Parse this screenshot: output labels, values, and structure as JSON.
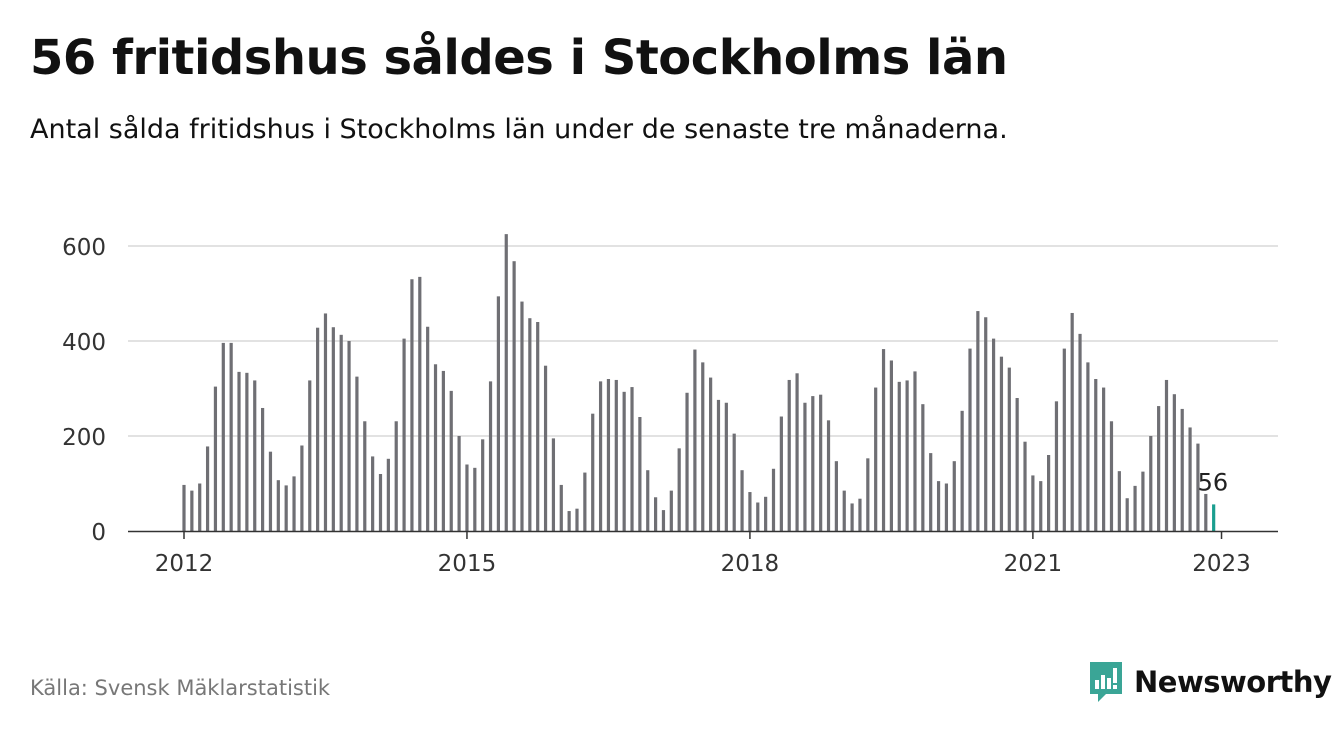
{
  "header": {
    "title": "56 fritidshus såldes i Stockholms län",
    "subtitle": "Antal sålda fritidshus i Stockholms län under de senaste tre månaderna."
  },
  "footer": {
    "source": "Källa: Svensk Mäklarstatistik",
    "brand": "Newsworthy"
  },
  "colors": {
    "bar": "#6f6f74",
    "highlight": "#1a9e8f",
    "brand": "#3aa596",
    "grid": "#d9d9d9",
    "axis": "#333333"
  },
  "chart_data": {
    "type": "bar",
    "title": "56 fritidshus såldes i Stockholms län",
    "subtitle": "Antal sålda fritidshus i Stockholms län under de senaste tre månaderna.",
    "xlabel": "",
    "ylabel": "",
    "x_start": "2012-01",
    "x_ticks": [
      "2012",
      "2015",
      "2018",
      "2021",
      "2023"
    ],
    "y_ticks": [
      0,
      200,
      400,
      600
    ],
    "ylim": [
      0,
      640
    ],
    "grid": true,
    "legend": "none",
    "highlight_label": "56",
    "values": [
      97,
      85,
      100,
      178,
      304,
      396,
      396,
      335,
      333,
      317,
      259,
      167,
      107,
      96,
      115,
      180,
      317,
      428,
      458,
      429,
      413,
      400,
      325,
      231,
      157,
      120,
      152,
      231,
      405,
      530,
      535,
      430,
      351,
      337,
      295,
      200,
      140,
      133,
      193,
      315,
      494,
      625,
      568,
      483,
      448,
      440,
      348,
      195,
      97,
      42,
      47,
      123,
      247,
      315,
      320,
      318,
      293,
      303,
      240,
      128,
      71,
      44,
      85,
      174,
      291,
      382,
      355,
      323,
      276,
      270,
      205,
      128,
      82,
      60,
      72,
      131,
      241,
      318,
      332,
      270,
      284,
      287,
      233,
      147,
      85,
      58,
      68,
      153,
      302,
      383,
      359,
      314,
      317,
      336,
      267,
      164,
      105,
      100,
      147,
      253,
      384,
      463,
      450,
      405,
      367,
      344,
      280,
      188,
      117,
      105,
      160,
      273,
      384,
      459,
      415,
      355,
      320,
      302,
      231,
      126,
      69,
      95,
      125,
      200,
      263,
      318,
      288,
      257,
      218,
      184,
      78,
      56
    ]
  }
}
